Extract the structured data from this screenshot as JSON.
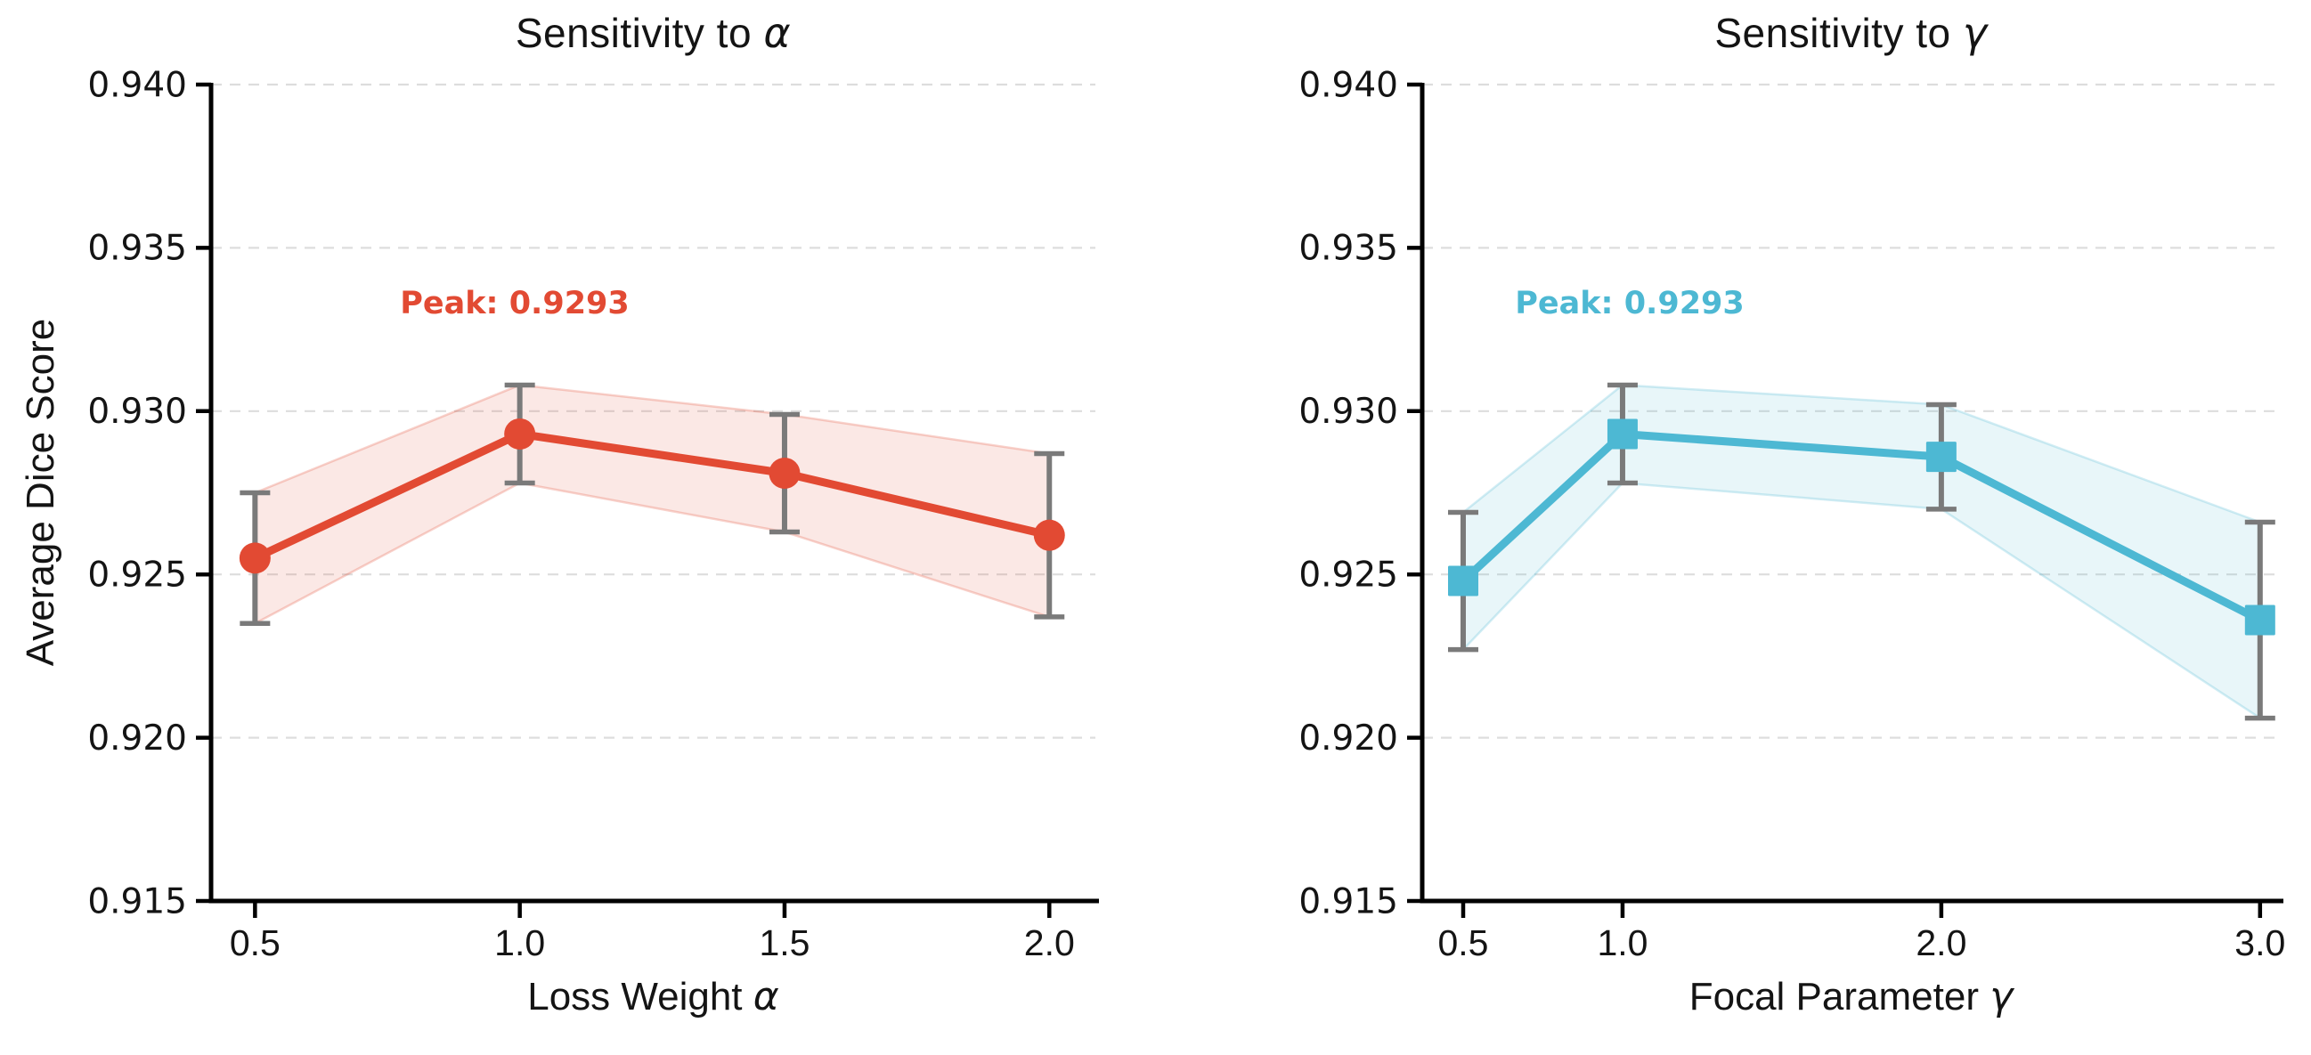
{
  "page": {
    "background": "#FFFFFF"
  },
  "shared": {
    "errorbar_color": "#7A7A7A",
    "grid_color": "#DDDDDD",
    "axis_color": "#000000",
    "tick_label_color": "#141414"
  },
  "chart_data": [
    {
      "type": "line",
      "title": "Sensitivity to α",
      "title_parts": {
        "prefix": "Sensitivity to ",
        "symbol": "α"
      },
      "xlabel": "Loss Weight α",
      "xlabel_parts": {
        "prefix": "Loss Weight ",
        "symbol": "α"
      },
      "ylabel": "Average Dice Score",
      "x": [
        0.5,
        1.0,
        1.5,
        2.0
      ],
      "y": [
        0.9255,
        0.9293,
        0.9281,
        0.9262
      ],
      "yerr": [
        0.002,
        0.0015,
        0.0018,
        0.0025
      ],
      "xticks": [
        0.5,
        1.0,
        1.5,
        2.0
      ],
      "xtick_labels": [
        "0.5",
        "1.0",
        "1.5",
        "2.0"
      ],
      "yticks": [
        0.915,
        0.92,
        0.925,
        0.93,
        0.935,
        0.94
      ],
      "ytick_labels": [
        "0.915",
        "0.920",
        "0.925",
        "0.930",
        "0.935",
        "0.940"
      ],
      "xlim": [
        0.417,
        2.087
      ],
      "ylim": [
        0.915,
        0.94
      ],
      "grid": true,
      "legend": null,
      "marker": "circle",
      "annotation": {
        "text": "Peak: 0.9293",
        "x": 1.0,
        "y": 0.9333
      },
      "colors": {
        "line": "#E24A33",
        "band_fill": "rgba(226,74,51,0.13)",
        "band_edge": "rgba(226,74,51,0.25)",
        "annotation": "#E24A33"
      }
    },
    {
      "type": "line",
      "title": "Sensitivity to γ",
      "title_parts": {
        "prefix": "Sensitivity to ",
        "symbol": "γ"
      },
      "xlabel": "Focal Parameter γ",
      "xlabel_parts": {
        "prefix": "Focal Parameter ",
        "symbol": "γ"
      },
      "ylabel": "",
      "x": [
        0.5,
        1.0,
        2.0,
        3.0
      ],
      "y": [
        0.9248,
        0.9293,
        0.9286,
        0.9236
      ],
      "yerr": [
        0.0021,
        0.0015,
        0.0016,
        0.003
      ],
      "xticks": [
        0.5,
        1.0,
        2.0,
        3.0
      ],
      "xtick_labels": [
        "0.5",
        "1.0",
        "2.0",
        "3.0"
      ],
      "yticks": [
        0.915,
        0.92,
        0.925,
        0.93,
        0.935,
        0.94
      ],
      "ytick_labels": [
        "0.915",
        "0.920",
        "0.925",
        "0.930",
        "0.935",
        "0.940"
      ],
      "xlim": [
        0.3715,
        3.062
      ],
      "ylim": [
        0.915,
        0.94
      ],
      "grid": true,
      "legend": null,
      "marker": "square",
      "annotation": {
        "text": "Peak: 0.9293",
        "x": 1.0,
        "y": 0.9333
      },
      "colors": {
        "line": "#4DB8D3",
        "band_fill": "rgba(77,184,211,0.13)",
        "band_edge": "rgba(77,184,211,0.25)",
        "annotation": "#4DB8D3"
      }
    }
  ]
}
